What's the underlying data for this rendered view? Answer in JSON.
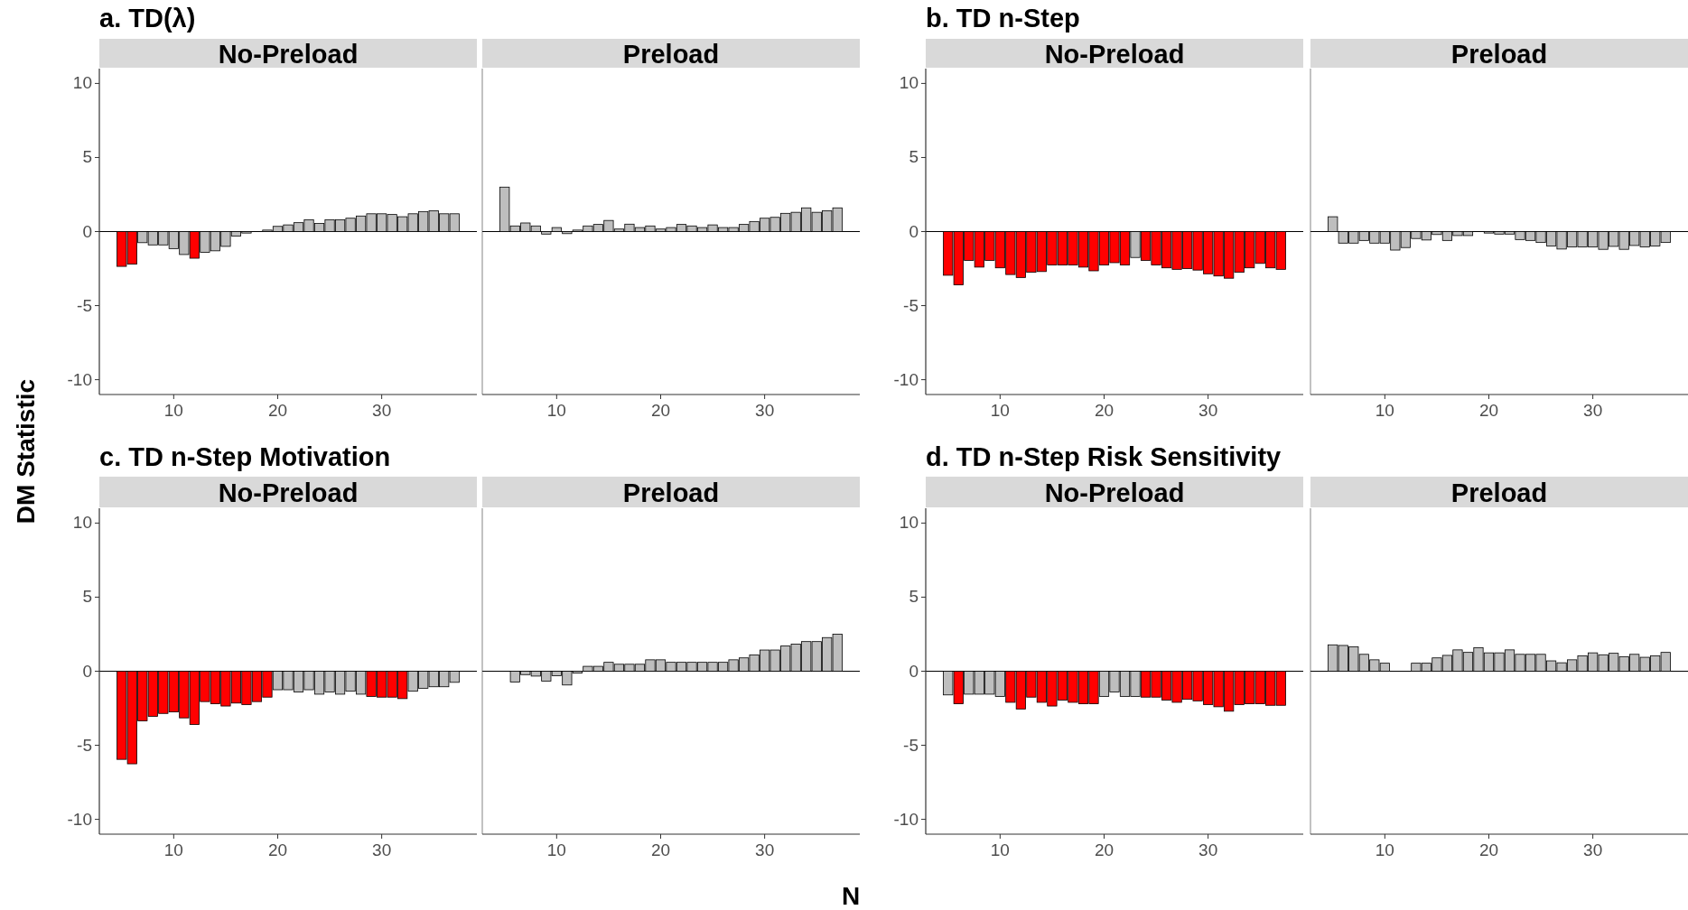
{
  "chart_data": [
    {
      "type": "bar",
      "title": "a. TD(λ)",
      "subtitle": "No-Preload",
      "ylabel": "DM Statistic",
      "x": [
        5,
        6,
        7,
        8,
        9,
        10,
        11,
        12,
        13,
        14,
        15,
        16,
        17,
        19,
        20,
        21,
        22,
        23,
        24,
        25,
        26,
        27,
        28,
        29,
        30,
        31,
        32,
        33,
        34,
        35,
        36,
        37
      ],
      "values": [
        -2.35,
        -2.2,
        -0.75,
        -0.9,
        -0.9,
        -1.15,
        -1.55,
        -1.8,
        -1.4,
        -1.3,
        -1.0,
        -0.3,
        -0.1,
        0.1,
        0.35,
        0.45,
        0.6,
        0.8,
        0.55,
        0.8,
        0.8,
        0.9,
        1.05,
        1.2,
        1.2,
        1.15,
        1.0,
        1.2,
        1.35,
        1.4,
        1.2,
        1.2
      ],
      "colors": [
        "#ff0000",
        "#ff0000",
        "#bebebe",
        "#bebebe",
        "#bebebe",
        "#bebebe",
        "#bebebe",
        "#ff0000",
        "#bebebe",
        "#bebebe",
        "#bebebe",
        "#bebebe",
        "#bebebe",
        "#bebebe",
        "#bebebe",
        "#bebebe",
        "#bebebe",
        "#bebebe",
        "#bebebe",
        "#bebebe",
        "#bebebe",
        "#bebebe",
        "#bebebe",
        "#bebebe",
        "#bebebe",
        "#bebebe",
        "#bebebe",
        "#bebebe",
        "#bebebe",
        "#bebebe",
        "#bebebe",
        "#bebebe"
      ],
      "xlim": [
        2.85,
        39.15
      ],
      "xticks": [
        10,
        20,
        30
      ],
      "ylim": [
        -11,
        11
      ],
      "yticks": [
        -10,
        -5,
        0,
        5,
        10
      ],
      "ref_lines": [
        {
          "axis": "y",
          "value": 0
        }
      ],
      "grid": false
    },
    {
      "type": "bar",
      "subtitle": "Preload",
      "x": [
        5,
        6,
        7,
        8,
        9,
        10,
        11,
        12,
        13,
        14,
        15,
        16,
        17,
        18,
        19,
        20,
        21,
        22,
        23,
        24,
        25,
        26,
        27,
        28,
        29,
        30,
        31,
        32,
        33,
        34,
        35,
        36,
        37
      ],
      "values": [
        3.0,
        0.38,
        0.58,
        0.38,
        -0.17,
        0.27,
        -0.14,
        0.1,
        0.38,
        0.48,
        0.75,
        0.17,
        0.5,
        0.27,
        0.38,
        0.17,
        0.27,
        0.48,
        0.38,
        0.27,
        0.45,
        0.27,
        0.27,
        0.48,
        0.68,
        0.9,
        0.96,
        1.23,
        1.3,
        1.6,
        1.3,
        1.4,
        1.6
      ],
      "colors": [
        "#bebebe",
        "#bebebe",
        "#bebebe",
        "#bebebe",
        "#bebebe",
        "#bebebe",
        "#bebebe",
        "#bebebe",
        "#bebebe",
        "#bebebe",
        "#bebebe",
        "#bebebe",
        "#bebebe",
        "#bebebe",
        "#bebebe",
        "#bebebe",
        "#bebebe",
        "#bebebe",
        "#bebebe",
        "#bebebe",
        "#bebebe",
        "#bebebe",
        "#bebebe",
        "#bebebe",
        "#bebebe",
        "#bebebe",
        "#bebebe",
        "#bebebe",
        "#bebebe",
        "#bebebe",
        "#bebebe",
        "#bebebe",
        "#bebebe"
      ],
      "xlim": [
        2.85,
        39.15
      ],
      "xticks": [
        10,
        20,
        30
      ],
      "ylim": [
        -11,
        11
      ],
      "yticks": [
        -10,
        -5,
        0,
        5,
        10
      ],
      "tick_labels": "x",
      "ref_lines": [
        {
          "axis": "y",
          "value": 0
        }
      ],
      "grid": false
    },
    {
      "type": "bar",
      "title": "b. TD n-Step",
      "subtitle": "No-Preload",
      "x": [
        5,
        6,
        7,
        8,
        9,
        10,
        11,
        12,
        13,
        14,
        15,
        16,
        17,
        18,
        19,
        20,
        21,
        22,
        23,
        24,
        25,
        26,
        27,
        28,
        29,
        30,
        31,
        32,
        33,
        34,
        35,
        36,
        37
      ],
      "values": [
        -2.95,
        -3.6,
        -1.95,
        -2.4,
        -1.95,
        -2.45,
        -2.9,
        -3.1,
        -2.75,
        -2.7,
        -2.25,
        -2.25,
        -2.25,
        -2.4,
        -2.65,
        -2.25,
        -2.1,
        -2.25,
        -1.75,
        -1.95,
        -2.25,
        -2.45,
        -2.55,
        -2.5,
        -2.6,
        -2.85,
        -3.0,
        -3.15,
        -2.75,
        -2.45,
        -2.15,
        -2.45,
        -2.55
      ],
      "colors": [
        "#ff0000",
        "#ff0000",
        "#ff0000",
        "#ff0000",
        "#ff0000",
        "#ff0000",
        "#ff0000",
        "#ff0000",
        "#ff0000",
        "#ff0000",
        "#ff0000",
        "#ff0000",
        "#ff0000",
        "#ff0000",
        "#ff0000",
        "#ff0000",
        "#ff0000",
        "#ff0000",
        "#bebebe",
        "#ff0000",
        "#ff0000",
        "#ff0000",
        "#ff0000",
        "#ff0000",
        "#ff0000",
        "#ff0000",
        "#ff0000",
        "#ff0000",
        "#ff0000",
        "#ff0000",
        "#ff0000",
        "#ff0000",
        "#ff0000"
      ],
      "xlim": [
        2.85,
        39.15
      ],
      "xticks": [
        10,
        20,
        30
      ],
      "ylim": [
        -11,
        11
      ],
      "yticks": [
        -10,
        -5,
        0,
        5,
        10
      ],
      "ref_lines": [
        {
          "axis": "y",
          "value": 0
        }
      ],
      "grid": false
    },
    {
      "type": "bar",
      "subtitle": "Preload",
      "x": [
        5,
        6,
        7,
        8,
        9,
        10,
        11,
        12,
        13,
        14,
        15,
        16,
        17,
        18,
        20,
        21,
        22,
        23,
        24,
        25,
        26,
        27,
        28,
        29,
        30,
        31,
        32,
        33,
        34,
        35,
        36,
        37
      ],
      "values": [
        1.0,
        -0.78,
        -0.78,
        -0.6,
        -0.78,
        -0.78,
        -1.25,
        -1.08,
        -0.47,
        -0.57,
        -0.2,
        -0.6,
        -0.27,
        -0.27,
        -0.1,
        -0.17,
        -0.17,
        -0.54,
        -0.6,
        -0.74,
        -0.98,
        -1.18,
        -1.04,
        -1.04,
        -1.04,
        -1.2,
        -1.0,
        -1.2,
        -0.94,
        -1.04,
        -0.98,
        -0.74
      ],
      "colors": [
        "#bebebe",
        "#bebebe",
        "#bebebe",
        "#bebebe",
        "#bebebe",
        "#bebebe",
        "#bebebe",
        "#bebebe",
        "#bebebe",
        "#bebebe",
        "#bebebe",
        "#bebebe",
        "#bebebe",
        "#bebebe",
        "#bebebe",
        "#bebebe",
        "#bebebe",
        "#bebebe",
        "#bebebe",
        "#bebebe",
        "#bebebe",
        "#bebebe",
        "#bebebe",
        "#bebebe",
        "#bebebe",
        "#bebebe",
        "#bebebe",
        "#bebebe",
        "#bebebe",
        "#bebebe",
        "#bebebe",
        "#bebebe"
      ],
      "xlim": [
        2.85,
        39.15
      ],
      "xticks": [
        10,
        20,
        30
      ],
      "ylim": [
        -11,
        11
      ],
      "yticks": [
        -10,
        -5,
        0,
        5,
        10
      ],
      "tick_labels": "x",
      "ref_lines": [
        {
          "axis": "y",
          "value": 0
        }
      ],
      "grid": false
    },
    {
      "type": "bar",
      "title": "c. TD n-Step Motivation",
      "subtitle": "No-Preload",
      "x": [
        5,
        6,
        7,
        8,
        9,
        10,
        11,
        12,
        13,
        14,
        15,
        16,
        17,
        18,
        19,
        20,
        21,
        22,
        23,
        24,
        25,
        26,
        27,
        28,
        29,
        30,
        31,
        32,
        33,
        34,
        35,
        36,
        37
      ],
      "values": [
        -5.95,
        -6.25,
        -3.35,
        -3.05,
        -2.85,
        -2.75,
        -3.15,
        -3.6,
        -2.05,
        -2.2,
        -2.35,
        -2.15,
        -2.25,
        -2.05,
        -1.75,
        -1.25,
        -1.25,
        -1.4,
        -1.25,
        -1.55,
        -1.4,
        -1.55,
        -1.35,
        -1.55,
        -1.7,
        -1.75,
        -1.75,
        -1.85,
        -1.35,
        -1.15,
        -1.05,
        -1.05,
        -0.75
      ],
      "colors": [
        "#ff0000",
        "#ff0000",
        "#ff0000",
        "#ff0000",
        "#ff0000",
        "#ff0000",
        "#ff0000",
        "#ff0000",
        "#ff0000",
        "#ff0000",
        "#ff0000",
        "#ff0000",
        "#ff0000",
        "#ff0000",
        "#ff0000",
        "#bebebe",
        "#bebebe",
        "#bebebe",
        "#bebebe",
        "#bebebe",
        "#bebebe",
        "#bebebe",
        "#bebebe",
        "#bebebe",
        "#ff0000",
        "#ff0000",
        "#ff0000",
        "#ff0000",
        "#bebebe",
        "#bebebe",
        "#bebebe",
        "#bebebe",
        "#bebebe"
      ],
      "xlim": [
        2.85,
        39.15
      ],
      "xticks": [
        10,
        20,
        30
      ],
      "ylim": [
        -11,
        11
      ],
      "yticks": [
        -10,
        -5,
        0,
        5,
        10
      ],
      "ref_lines": [
        {
          "axis": "y",
          "value": 0
        }
      ],
      "grid": false
    },
    {
      "type": "bar",
      "subtitle": "Preload",
      "xlabel": "N",
      "x": [
        6,
        7,
        8,
        9,
        10,
        11,
        12,
        13,
        14,
        15,
        16,
        17,
        18,
        19,
        20,
        21,
        22,
        23,
        24,
        25,
        26,
        27,
        28,
        29,
        30,
        31,
        32,
        33,
        34,
        35,
        36,
        37
      ],
      "values": [
        -0.73,
        -0.23,
        -0.33,
        -0.67,
        -0.3,
        -0.93,
        -0.13,
        0.33,
        0.33,
        0.6,
        0.47,
        0.47,
        0.47,
        0.77,
        0.77,
        0.6,
        0.6,
        0.6,
        0.6,
        0.6,
        0.6,
        0.77,
        0.9,
        1.1,
        1.43,
        1.43,
        1.7,
        1.83,
        2.0,
        2.0,
        2.27,
        2.5
      ],
      "colors": [
        "#bebebe",
        "#bebebe",
        "#bebebe",
        "#bebebe",
        "#bebebe",
        "#bebebe",
        "#bebebe",
        "#bebebe",
        "#bebebe",
        "#bebebe",
        "#bebebe",
        "#bebebe",
        "#bebebe",
        "#bebebe",
        "#bebebe",
        "#bebebe",
        "#bebebe",
        "#bebebe",
        "#bebebe",
        "#bebebe",
        "#bebebe",
        "#bebebe",
        "#bebebe",
        "#bebebe",
        "#bebebe",
        "#bebebe",
        "#bebebe",
        "#bebebe",
        "#bebebe",
        "#bebebe",
        "#bebebe",
        "#bebebe"
      ],
      "xlim": [
        2.85,
        39.15
      ],
      "xticks": [
        10,
        20,
        30
      ],
      "ylim": [
        -11,
        11
      ],
      "yticks": [
        -10,
        -5,
        0,
        5,
        10
      ],
      "tick_labels": "x",
      "ref_lines": [
        {
          "axis": "y",
          "value": 0
        }
      ],
      "grid": false
    },
    {
      "type": "bar",
      "title": "d. TD n-Step Risk Sensitivity",
      "subtitle": "No-Preload",
      "x": [
        5,
        6,
        7,
        8,
        9,
        10,
        11,
        12,
        13,
        14,
        15,
        16,
        17,
        18,
        19,
        20,
        21,
        22,
        23,
        24,
        25,
        26,
        27,
        28,
        29,
        30,
        31,
        32,
        33,
        34,
        35,
        36,
        37
      ],
      "values": [
        -1.6,
        -2.2,
        -1.55,
        -1.55,
        -1.55,
        -1.7,
        -2.1,
        -2.55,
        -1.75,
        -2.1,
        -2.35,
        -1.95,
        -2.1,
        -2.2,
        -2.2,
        -1.7,
        -1.4,
        -1.7,
        -1.7,
        -1.75,
        -1.75,
        -1.95,
        -2.1,
        -1.9,
        -2.0,
        -2.25,
        -2.4,
        -2.7,
        -2.25,
        -2.2,
        -2.2,
        -2.3,
        -2.3
      ],
      "colors": [
        "#bebebe",
        "#ff0000",
        "#bebebe",
        "#bebebe",
        "#bebebe",
        "#bebebe",
        "#ff0000",
        "#ff0000",
        "#ff0000",
        "#ff0000",
        "#ff0000",
        "#ff0000",
        "#ff0000",
        "#ff0000",
        "#ff0000",
        "#bebebe",
        "#bebebe",
        "#bebebe",
        "#bebebe",
        "#ff0000",
        "#ff0000",
        "#ff0000",
        "#ff0000",
        "#ff0000",
        "#ff0000",
        "#ff0000",
        "#ff0000",
        "#ff0000",
        "#ff0000",
        "#ff0000",
        "#ff0000",
        "#ff0000",
        "#ff0000"
      ],
      "xlim": [
        2.85,
        39.15
      ],
      "xticks": [
        10,
        20,
        30
      ],
      "ylim": [
        -11,
        11
      ],
      "yticks": [
        -10,
        -5,
        0,
        5,
        10
      ],
      "ref_lines": [
        {
          "axis": "y",
          "value": 0
        }
      ],
      "grid": false
    },
    {
      "type": "bar",
      "subtitle": "Preload",
      "x": [
        5,
        6,
        7,
        8,
        9,
        10,
        13,
        14,
        15,
        16,
        17,
        18,
        19,
        20,
        21,
        22,
        23,
        24,
        25,
        26,
        27,
        28,
        29,
        30,
        31,
        32,
        33,
        34,
        35,
        36,
        37
      ],
      "values": [
        1.78,
        1.74,
        1.64,
        1.14,
        0.77,
        0.54,
        0.54,
        0.54,
        0.9,
        1.07,
        1.44,
        1.27,
        1.58,
        1.24,
        1.24,
        1.44,
        1.14,
        1.14,
        1.14,
        0.7,
        0.57,
        0.77,
        1.04,
        1.24,
        1.11,
        1.21,
        0.97,
        1.14,
        0.94,
        1.04,
        1.27
      ],
      "colors": [
        "#bebebe",
        "#bebebe",
        "#bebebe",
        "#bebebe",
        "#bebebe",
        "#bebebe",
        "#bebebe",
        "#bebebe",
        "#bebebe",
        "#bebebe",
        "#bebebe",
        "#bebebe",
        "#bebebe",
        "#bebebe",
        "#bebebe",
        "#bebebe",
        "#bebebe",
        "#bebebe",
        "#bebebe",
        "#bebebe",
        "#bebebe",
        "#bebebe",
        "#bebebe",
        "#bebebe",
        "#bebebe",
        "#bebebe",
        "#bebebe",
        "#bebebe",
        "#bebebe",
        "#bebebe",
        "#bebebe"
      ],
      "xlim": [
        2.85,
        39.15
      ],
      "xticks": [
        10,
        20,
        30
      ],
      "ylim": [
        -11,
        11
      ],
      "yticks": [
        -10,
        -5,
        0,
        5,
        10
      ],
      "tick_labels": "x",
      "ref_lines": [
        {
          "axis": "y",
          "value": 0
        }
      ],
      "grid": false
    }
  ]
}
